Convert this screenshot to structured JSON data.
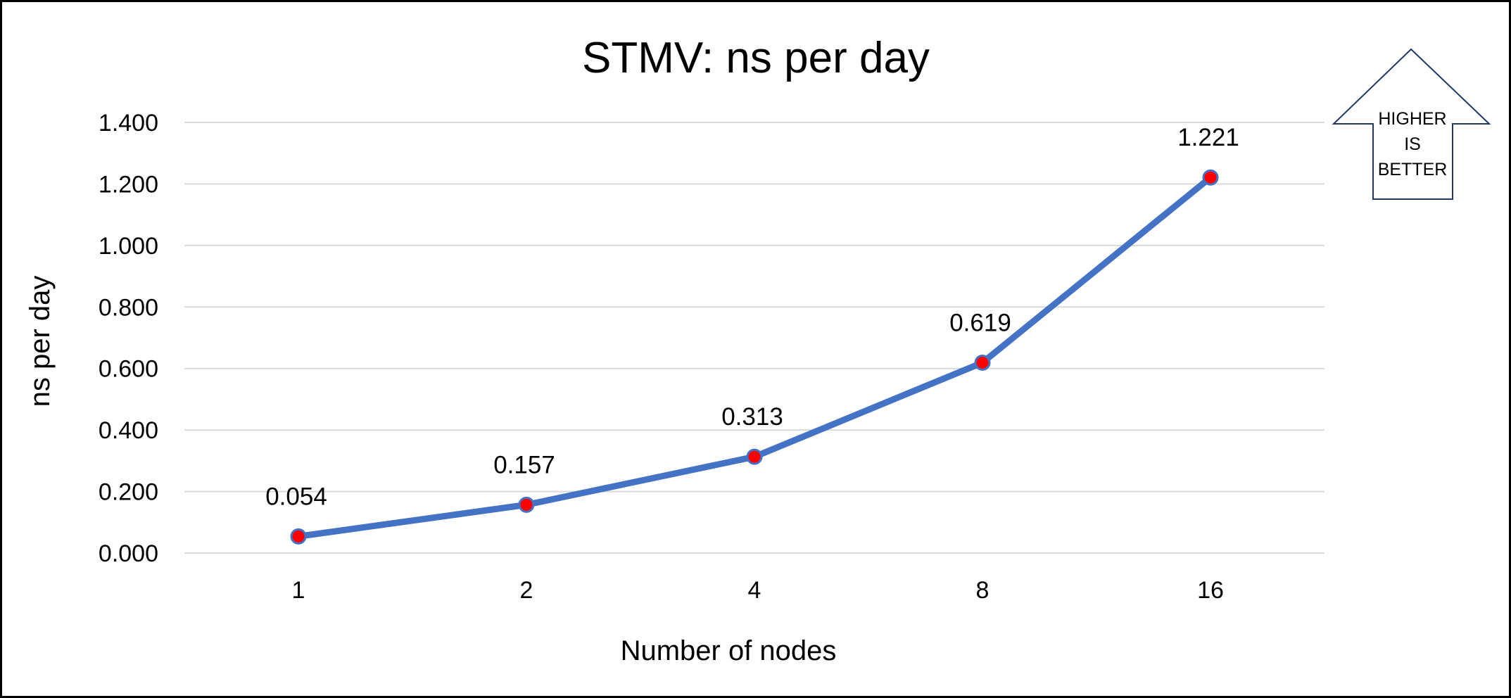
{
  "chart_data": {
    "type": "line",
    "title": "STMV: ns per day",
    "xlabel": "Number of nodes",
    "ylabel": "ns per day",
    "categories": [
      "1",
      "2",
      "4",
      "8",
      "16"
    ],
    "series": [
      {
        "values": [
          0.054,
          0.157,
          0.313,
          0.619,
          1.221
        ],
        "labels": [
          "0.054",
          "0.157",
          "0.313",
          "0.619",
          "1.221"
        ]
      }
    ],
    "yticks": [
      "0.000",
      "0.200",
      "0.400",
      "0.600",
      "0.800",
      "1.000",
      "1.200",
      "1.400"
    ],
    "ylim": [
      0,
      1.4
    ],
    "grid": true,
    "legend": "none",
    "line_color": "#4472c4",
    "marker_color": "#ff0000",
    "annotation": {
      "shape": "up-arrow",
      "lines": [
        "HIGHER",
        "IS",
        "BETTER"
      ]
    }
  }
}
